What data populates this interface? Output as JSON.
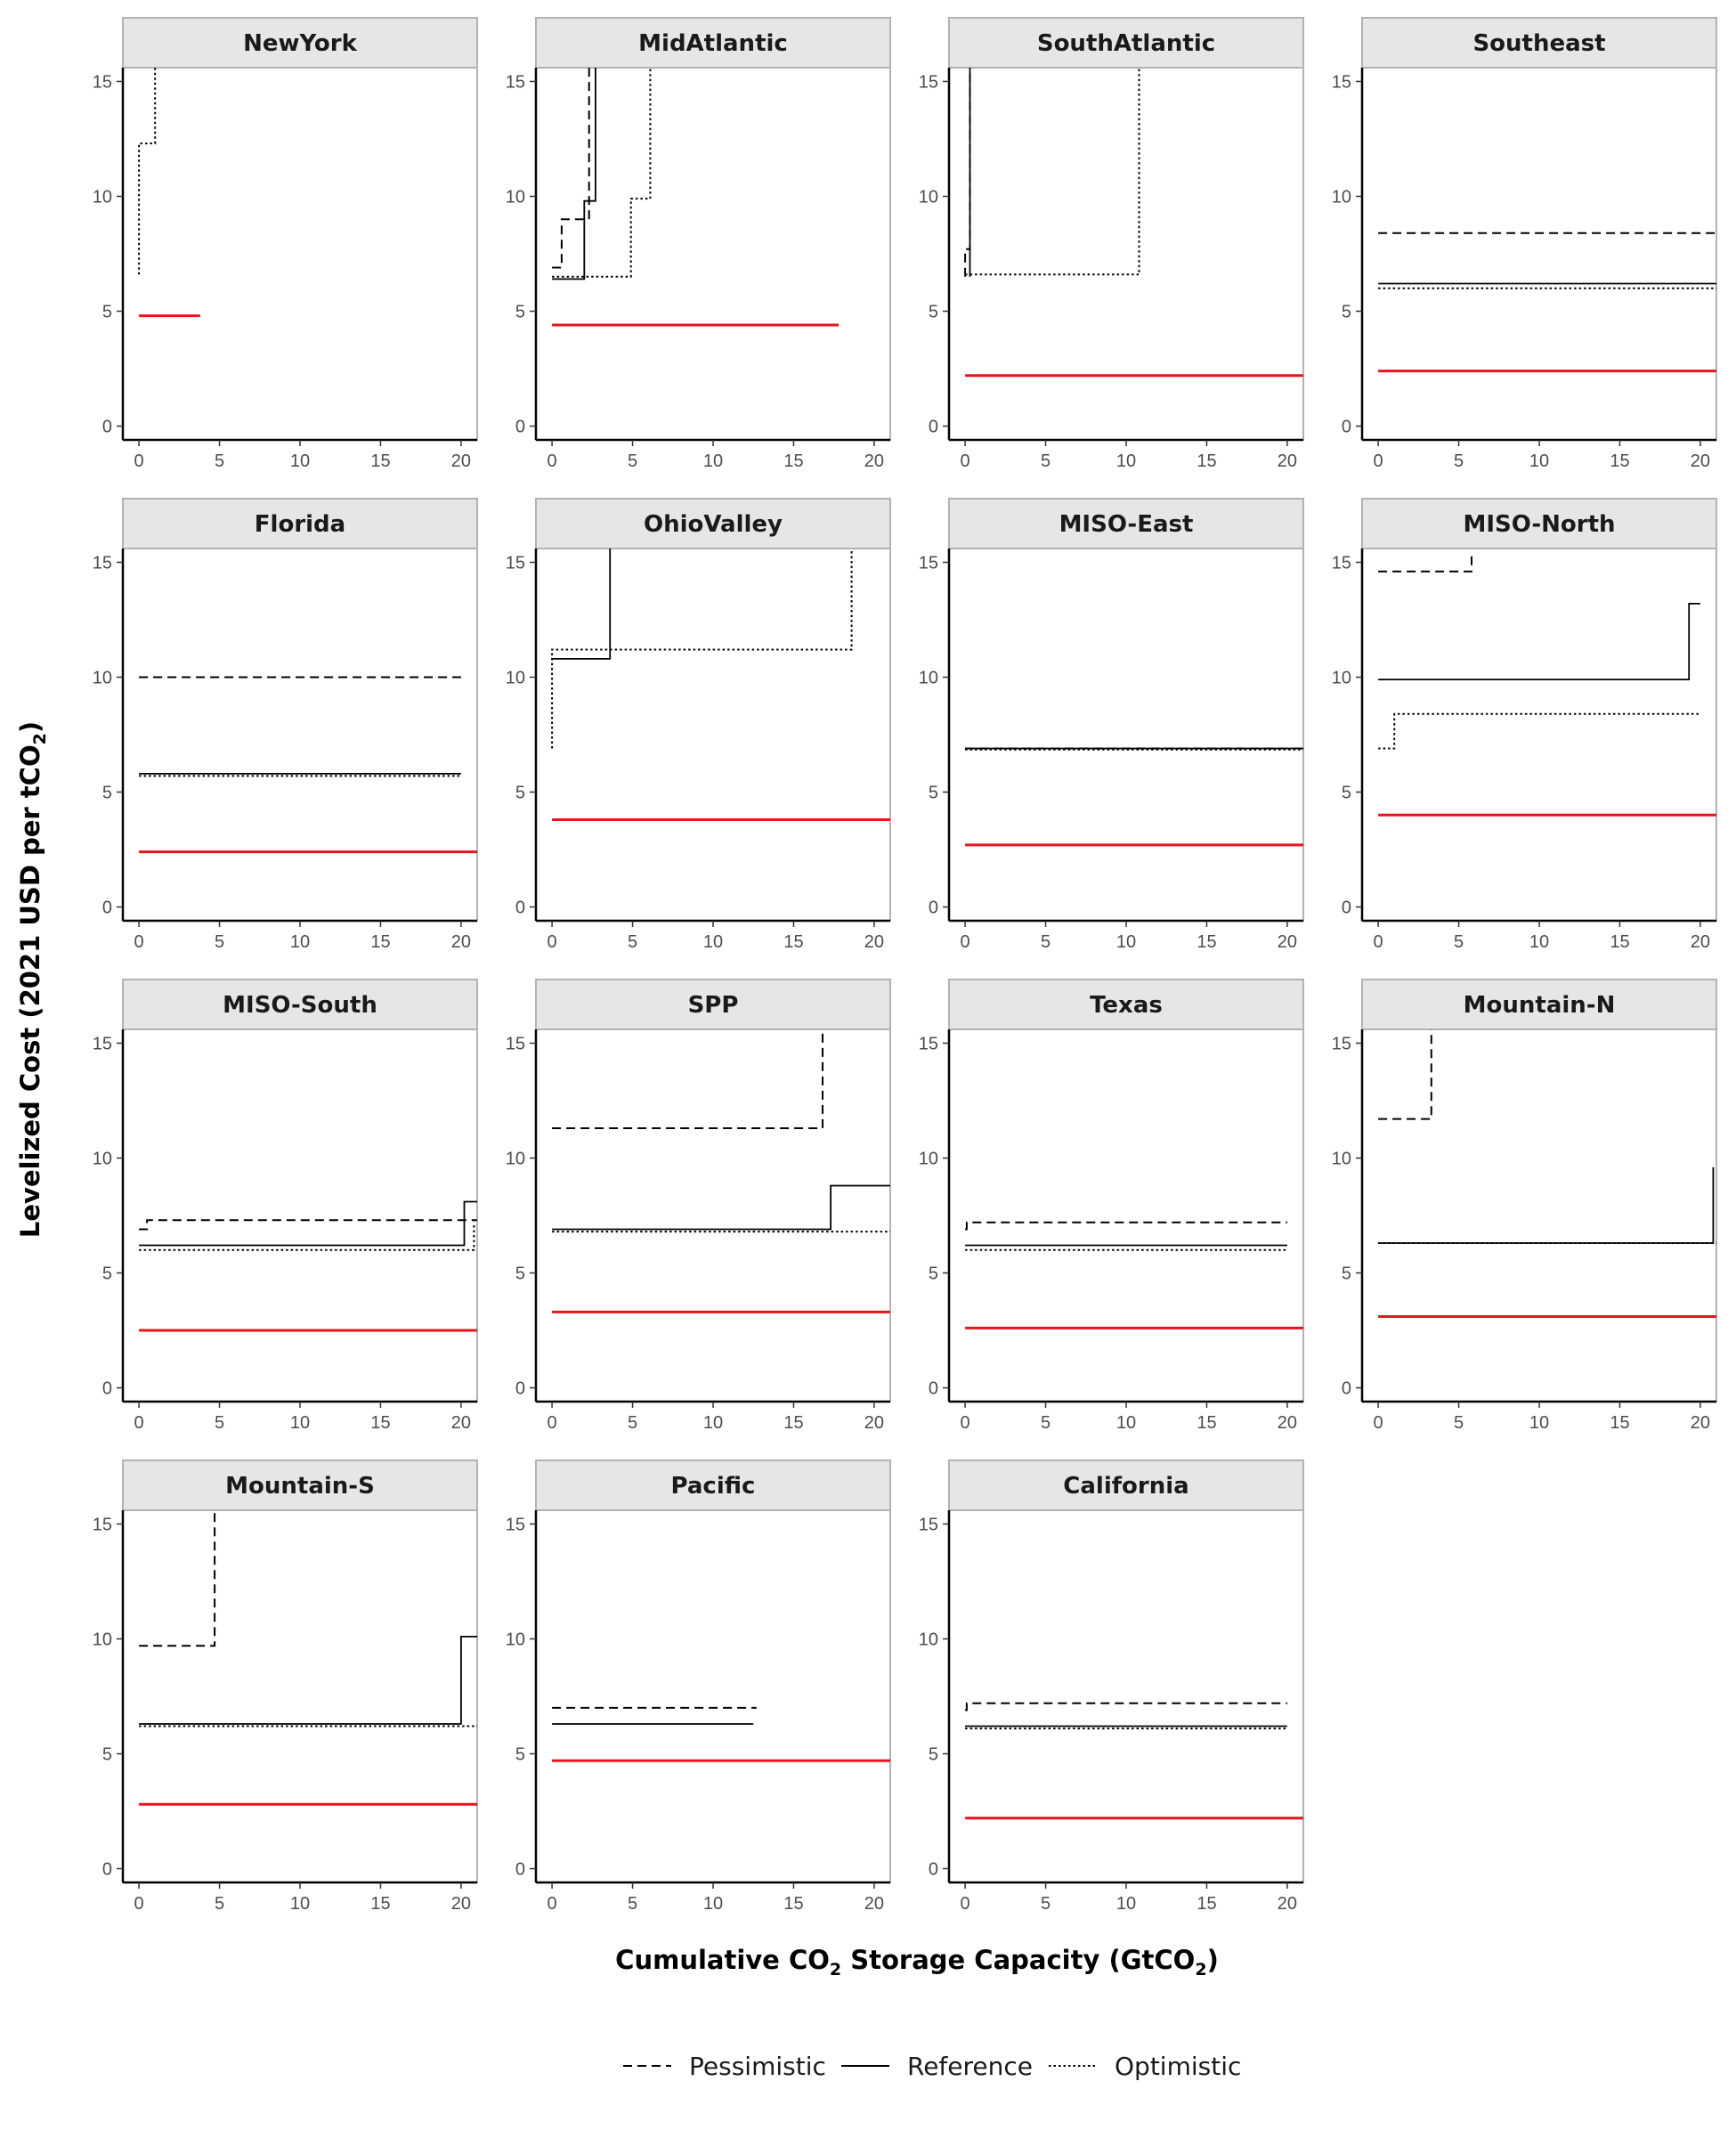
{
  "chart_data": {
    "type": "line",
    "step": true,
    "xlabel_parts": [
      "Cumulative CO",
      "2",
      " Storage Capacity (GtCO",
      "2",
      ")"
    ],
    "ylabel_parts": [
      "Levelized Cost (2021 USD per tCO",
      "2",
      ")"
    ],
    "xlim": [
      -1,
      21
    ],
    "ylim": [
      -0.6,
      15.6
    ],
    "xticks": [
      "0",
      "5",
      "10",
      "15",
      "20"
    ],
    "yticks": [
      "0",
      "5",
      "10",
      "15"
    ],
    "grid": false,
    "legend_position": "bottom",
    "legend": [
      {
        "label": "Pessimistic",
        "style": "dashed"
      },
      {
        "label": "Reference",
        "style": "solid"
      },
      {
        "label": "Optimistic",
        "style": "dotted"
      }
    ],
    "colors": {
      "red_line": "#e8141b",
      "series": "#000000",
      "strip": "#e6e6e6",
      "frame": "#b3b3b3"
    },
    "panels": [
      {
        "title": "NewYork",
        "red": {
          "y": 4.8,
          "x_end": 3.8
        },
        "pessimistic": [],
        "reference": [],
        "optimistic": [
          [
            0,
            6.6
          ],
          [
            0,
            12.3
          ],
          [
            1,
            12.3
          ],
          [
            1,
            15.8
          ]
        ]
      },
      {
        "title": "MidAtlantic",
        "red": {
          "y": 4.4,
          "x_end": 17.8
        },
        "pessimistic": [
          [
            0,
            6.9
          ],
          [
            0.6,
            6.9
          ],
          [
            0.6,
            9
          ],
          [
            2.3,
            9
          ],
          [
            2.3,
            15.8
          ]
        ],
        "reference": [
          [
            0,
            6.4
          ],
          [
            2,
            6.4
          ],
          [
            2,
            9.8
          ],
          [
            2.7,
            9.8
          ],
          [
            2.7,
            15.8
          ]
        ],
        "optimistic": [
          [
            0,
            6.5
          ],
          [
            4.9,
            6.5
          ],
          [
            4.9,
            9.9
          ],
          [
            6.1,
            9.9
          ],
          [
            6.1,
            15.8
          ]
        ]
      },
      {
        "title": "SouthAtlantic",
        "red": {
          "y": 2.2,
          "x_end": 21
        },
        "pessimistic": [
          [
            0,
            6.5
          ],
          [
            0,
            7.7
          ],
          [
            0.3,
            7.7
          ],
          [
            0.3,
            15.8
          ]
        ],
        "reference": [
          [
            0.3,
            6.5
          ],
          [
            0.3,
            15.8
          ]
        ],
        "optimistic": [
          [
            0,
            6.6
          ],
          [
            10.8,
            6.6
          ],
          [
            10.8,
            15.8
          ]
        ]
      },
      {
        "title": "Southeast",
        "red": {
          "y": 2.4,
          "x_end": 21
        },
        "pessimistic": [
          [
            0,
            8.4
          ],
          [
            21,
            8.4
          ]
        ],
        "reference": [
          [
            0,
            6.2
          ],
          [
            21,
            6.2
          ]
        ],
        "optimistic": [
          [
            0,
            6.0
          ],
          [
            21,
            6.0
          ]
        ]
      },
      {
        "title": "Florida",
        "red": {
          "y": 2.4,
          "x_end": 21
        },
        "pessimistic": [
          [
            0,
            10.0
          ],
          [
            20,
            10.0
          ]
        ],
        "reference": [
          [
            0,
            5.8
          ],
          [
            20,
            5.8
          ]
        ],
        "optimistic": [
          [
            0,
            5.7
          ],
          [
            20,
            5.7
          ]
        ]
      },
      {
        "title": "OhioValley",
        "red": {
          "y": 3.8,
          "x_end": 21
        },
        "pessimistic": [],
        "reference": [
          [
            0,
            10.8
          ],
          [
            3.6,
            10.8
          ],
          [
            3.6,
            15.8
          ]
        ],
        "optimistic": [
          [
            0,
            6.9
          ],
          [
            0,
            11.2
          ],
          [
            18.6,
            11.2
          ],
          [
            18.6,
            15.8
          ]
        ]
      },
      {
        "title": "MISO-East",
        "red": {
          "y": 2.7,
          "x_end": 21
        },
        "pessimistic": [
          [
            0,
            6.9
          ],
          [
            21,
            6.9
          ]
        ],
        "reference": [
          [
            0,
            6.9
          ],
          [
            21,
            6.9
          ]
        ],
        "optimistic": [
          [
            0,
            6.85
          ],
          [
            21,
            6.85
          ]
        ]
      },
      {
        "title": "MISO-North",
        "red": {
          "y": 4.0,
          "x_end": 21
        },
        "pessimistic": [
          [
            0,
            14.6
          ],
          [
            5.8,
            14.6
          ],
          [
            5.8,
            15.4
          ]
        ],
        "reference": [
          [
            0,
            9.9
          ],
          [
            19.3,
            9.9
          ],
          [
            19.3,
            13.2
          ],
          [
            20,
            13.2
          ]
        ],
        "optimistic": [
          [
            0,
            6.9
          ],
          [
            1,
            6.9
          ],
          [
            1,
            8.4
          ],
          [
            20,
            8.4
          ]
        ]
      },
      {
        "title": "MISO-South",
        "red": {
          "y": 2.5,
          "x_end": 21
        },
        "pessimistic": [
          [
            0,
            6.9
          ],
          [
            0.5,
            6.9
          ],
          [
            0.5,
            7.3
          ],
          [
            21,
            7.3
          ]
        ],
        "reference": [
          [
            0,
            6.2
          ],
          [
            20.2,
            6.2
          ],
          [
            20.2,
            8.1
          ],
          [
            21,
            8.1
          ]
        ],
        "optimistic": [
          [
            0,
            6.0
          ],
          [
            20.8,
            6.0
          ],
          [
            20.8,
            7.2
          ]
        ]
      },
      {
        "title": "SPP",
        "red": {
          "y": 3.3,
          "x_end": 21
        },
        "pessimistic": [
          [
            0,
            11.3
          ],
          [
            16.8,
            11.3
          ],
          [
            16.8,
            15.8
          ]
        ],
        "reference": [
          [
            0,
            6.9
          ],
          [
            17.3,
            6.9
          ],
          [
            17.3,
            8.8
          ],
          [
            21,
            8.8
          ]
        ],
        "optimistic": [
          [
            0,
            6.8
          ],
          [
            21,
            6.8
          ]
        ]
      },
      {
        "title": "Texas",
        "red": {
          "y": 2.6,
          "x_end": 21
        },
        "pessimistic": [
          [
            0,
            6.9
          ],
          [
            0.1,
            6.9
          ],
          [
            0.1,
            7.2
          ],
          [
            20,
            7.2
          ]
        ],
        "reference": [
          [
            0,
            6.2
          ],
          [
            20,
            6.2
          ]
        ],
        "optimistic": [
          [
            0,
            6.0
          ],
          [
            20,
            6.0
          ]
        ]
      },
      {
        "title": "Mountain-N",
        "red": {
          "y": 3.1,
          "x_end": 21
        },
        "pessimistic": [
          [
            0,
            11.7
          ],
          [
            3.3,
            11.7
          ],
          [
            3.3,
            15.7
          ],
          [
            21,
            15.7
          ]
        ],
        "reference": [
          [
            0,
            6.3
          ],
          [
            20.8,
            6.3
          ],
          [
            20.8,
            9.6
          ]
        ],
        "optimistic": [
          [
            0,
            6.3
          ],
          [
            21,
            6.3
          ]
        ]
      },
      {
        "title": "Mountain-S",
        "red": {
          "y": 2.8,
          "x_end": 21
        },
        "pessimistic": [
          [
            0,
            9.7
          ],
          [
            4.7,
            9.7
          ],
          [
            4.7,
            15.8
          ]
        ],
        "reference": [
          [
            0,
            6.3
          ],
          [
            20,
            6.3
          ],
          [
            20,
            10.1
          ],
          [
            21,
            10.1
          ]
        ],
        "optimistic": [
          [
            0,
            6.2
          ],
          [
            21,
            6.2
          ]
        ]
      },
      {
        "title": "Pacific",
        "red": {
          "y": 4.7,
          "x_end": 21
        },
        "pessimistic": [
          [
            0,
            7.0
          ],
          [
            12.7,
            7.0
          ]
        ],
        "reference": [
          [
            0,
            6.3
          ],
          [
            12.5,
            6.3
          ]
        ],
        "optimistic": []
      },
      {
        "title": "California",
        "red": {
          "y": 2.2,
          "x_end": 21
        },
        "pessimistic": [
          [
            0,
            6.9
          ],
          [
            0.1,
            6.9
          ],
          [
            0.1,
            7.2
          ],
          [
            20,
            7.2
          ]
        ],
        "reference": [
          [
            0,
            6.2
          ],
          [
            20,
            6.2
          ]
        ],
        "optimistic": [
          [
            0,
            6.1
          ],
          [
            20,
            6.1
          ]
        ]
      }
    ]
  }
}
